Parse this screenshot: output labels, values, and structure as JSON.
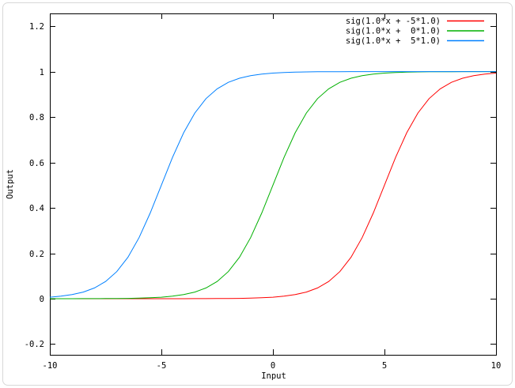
{
  "figure": {
    "background": "#ffffff",
    "outer_border_color": "#d8d8d8",
    "frame_color": "#000000",
    "text_color": "#000000"
  },
  "chart_data": {
    "type": "line",
    "title": "",
    "xlabel": "Input",
    "ylabel": "Output",
    "xlim": [
      -10,
      10
    ],
    "ylim": [
      -0.247,
      1.256
    ],
    "grid": false,
    "legend_position": "top-right-inside",
    "xticks": [
      {
        "value": -10,
        "label": "-10"
      },
      {
        "value": -5,
        "label": "-5"
      },
      {
        "value": 0,
        "label": "0"
      },
      {
        "value": 5,
        "label": "5"
      },
      {
        "value": 10,
        "label": "10"
      }
    ],
    "yticks": [
      {
        "value": -0.2,
        "label": "-0.2"
      },
      {
        "value": 0,
        "label": "0"
      },
      {
        "value": 0.2,
        "label": "0.2"
      },
      {
        "value": 0.4,
        "label": "0.4"
      },
      {
        "value": 0.6,
        "label": "0.6"
      },
      {
        "value": 0.8,
        "label": "0.8"
      },
      {
        "value": 1,
        "label": "1"
      },
      {
        "value": 1.2,
        "label": "1.2"
      }
    ],
    "x": [
      -10,
      -9.5,
      -9,
      -8.5,
      -8,
      -7.5,
      -7,
      -6.5,
      -6,
      -5.5,
      -5,
      -4.5,
      -4,
      -3.5,
      -3,
      -2.5,
      -2,
      -1.5,
      -1,
      -0.5,
      0,
      0.5,
      1,
      1.5,
      2,
      2.5,
      3,
      3.5,
      4,
      4.5,
      5,
      5.5,
      6,
      6.5,
      7,
      7.5,
      8,
      8.5,
      9,
      9.5,
      10
    ],
    "series": [
      {
        "name": "sig(1.0*x + -5*1.0)",
        "color": "#ff0000",
        "values": [
          0,
          0,
          0,
          0,
          0,
          0,
          0,
          0,
          0,
          0,
          0.0,
          0.0001,
          0.0001,
          0.0002,
          0.0003,
          0.0006,
          0.0009,
          0.0015,
          0.0025,
          0.0041,
          0.0067,
          0.011,
          0.018,
          0.0293,
          0.0474,
          0.0759,
          0.1192,
          0.1824,
          0.2689,
          0.3775,
          0.5,
          0.6225,
          0.7311,
          0.8176,
          0.8808,
          0.9241,
          0.9526,
          0.9707,
          0.982,
          0.989,
          0.9933
        ]
      },
      {
        "name": "sig(1.0*x +  0*1.0)",
        "color": "#00b000",
        "values": [
          0.0,
          0.0001,
          0.0001,
          0.0002,
          0.0003,
          0.0006,
          0.0009,
          0.0015,
          0.0025,
          0.0041,
          0.0067,
          0.011,
          0.018,
          0.0293,
          0.0474,
          0.0759,
          0.1192,
          0.1824,
          0.2689,
          0.3775,
          0.5,
          0.6225,
          0.7311,
          0.8176,
          0.8808,
          0.9241,
          0.9526,
          0.9707,
          0.982,
          0.989,
          0.9933,
          0.9959,
          0.9975,
          0.9985,
          0.9991,
          0.9994,
          0.9997,
          0.9998,
          0.9999,
          0.9999,
          1.0
        ]
      },
      {
        "name": "sig(1.0*x +  5*1.0)",
        "color": "#0080ff",
        "values": [
          0.0067,
          0.011,
          0.018,
          0.0293,
          0.0474,
          0.0759,
          0.1192,
          0.1824,
          0.2689,
          0.3775,
          0.5,
          0.6225,
          0.7311,
          0.8176,
          0.8808,
          0.9241,
          0.9526,
          0.9707,
          0.982,
          0.989,
          0.9933,
          0.9959,
          0.9975,
          0.9985,
          0.9991,
          0.9994,
          0.9997,
          0.9998,
          0.9999,
          0.9999,
          1.0,
          1,
          1,
          1,
          1,
          1,
          1,
          1,
          1,
          1,
          1
        ]
      }
    ]
  }
}
